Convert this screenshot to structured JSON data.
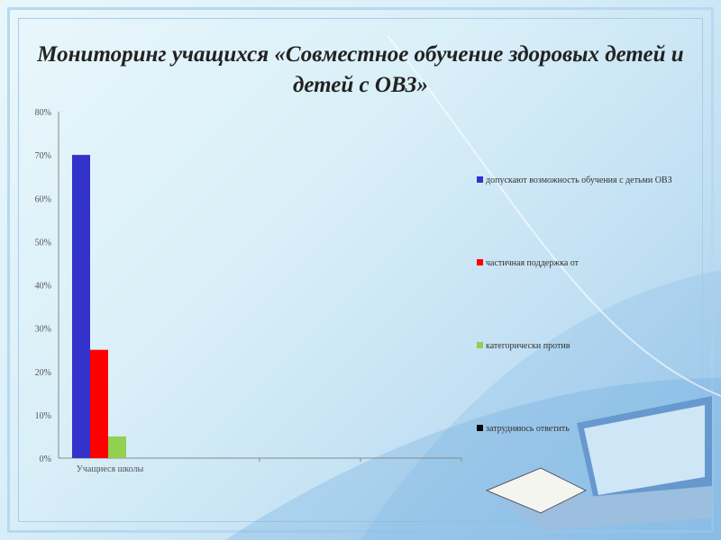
{
  "slide": {
    "title": "Мониторинг учащихся «Совместное обучение здоровых детей и детей с ОВЗ»"
  },
  "chart_data": {
    "type": "bar",
    "title": "",
    "categories": [
      "Учащиеся школы"
    ],
    "series": [
      {
        "name": "допускают возможность обучения с детьми ОВЗ",
        "values": [
          70
        ],
        "color": "#3333cc"
      },
      {
        "name": "частичная поддержка от",
        "values": [
          25
        ],
        "color": "#ff0000"
      },
      {
        "name": "категорически против",
        "values": [
          5
        ],
        "color": "#92d050"
      },
      {
        "name": "затрудняюсь ответить",
        "values": [
          0
        ],
        "color": "#000000"
      }
    ],
    "yticks": [
      "0%",
      "10%",
      "20%",
      "30%",
      "40%",
      "50%",
      "60%",
      "70%",
      "80%"
    ],
    "ylim": [
      0,
      80
    ],
    "grid": false,
    "legend": "right"
  }
}
